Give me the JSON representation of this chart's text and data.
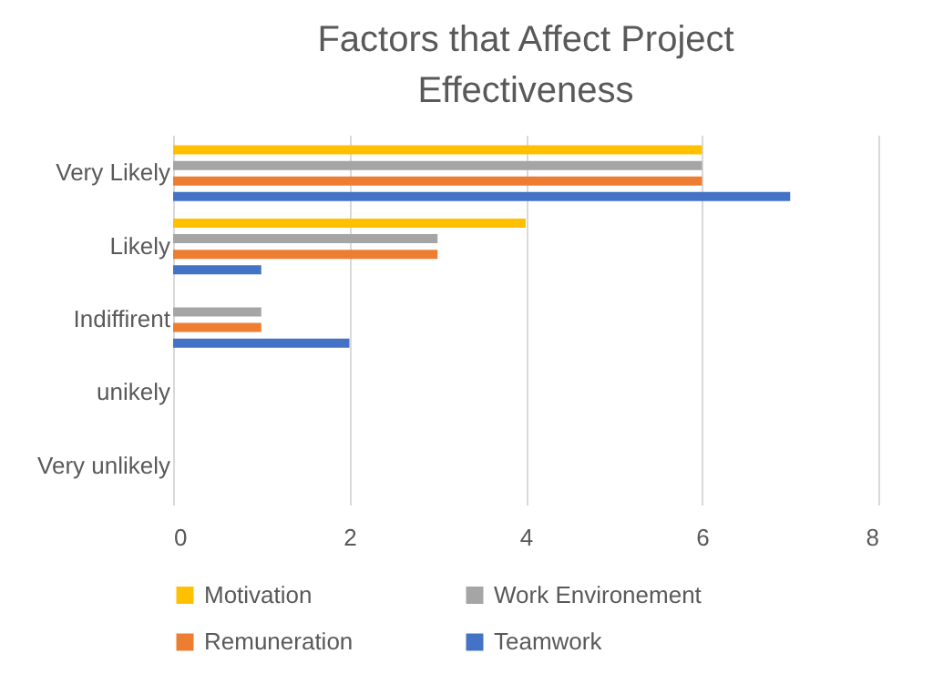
{
  "chart_data": {
    "type": "bar",
    "orientation": "horizontal",
    "title": "Factors that Affect Project Effectiveness",
    "categories": [
      "Very Likely",
      "Likely",
      "Indiffirent",
      "unikely",
      "Very unlikely"
    ],
    "series": [
      {
        "name": "Motivation",
        "color": "#ffc000",
        "values": [
          6,
          4,
          0,
          0,
          0
        ]
      },
      {
        "name": "Work Environement",
        "color": "#a5a5a5",
        "values": [
          6,
          3,
          1,
          0,
          0
        ]
      },
      {
        "name": "Remuneration",
        "color": "#ed7d31",
        "values": [
          6,
          3,
          1,
          0,
          0
        ]
      },
      {
        "name": "Teamwork",
        "color": "#4472c4",
        "values": [
          7,
          1,
          2,
          0,
          0
        ]
      }
    ],
    "xlim": [
      0,
      8
    ],
    "xticks": [
      0,
      2,
      4,
      6,
      8
    ],
    "grid": "x",
    "legend": "bottom"
  }
}
